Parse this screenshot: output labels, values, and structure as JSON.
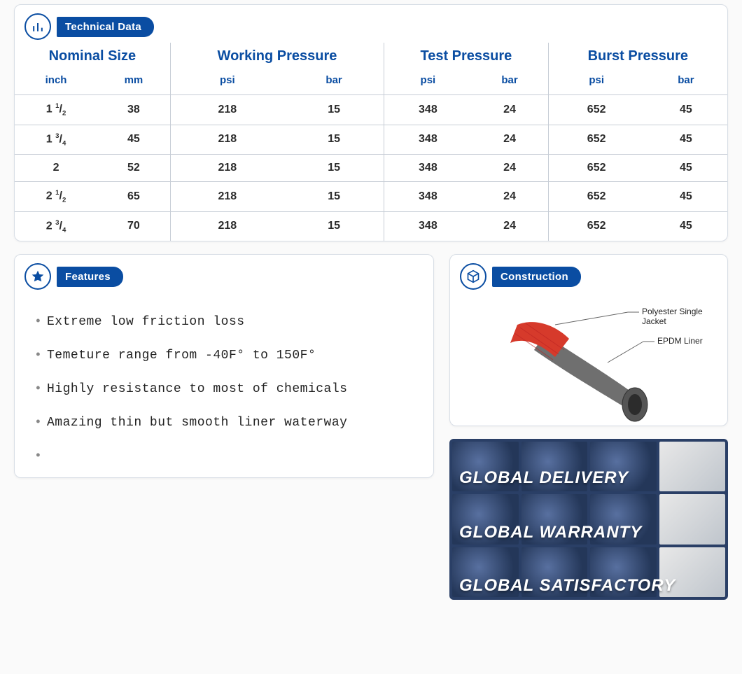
{
  "colors": {
    "brand_blue": "#0a4da2",
    "card_border": "#d8dee6",
    "row_border": "#c7cdd6",
    "header_sep": "#8f98a5",
    "feature_text": "#222222",
    "banner_bg": "#2a3f66"
  },
  "typography": {
    "group_header_fontsize": 20,
    "unit_header_fontsize": 15,
    "cell_fontsize": 16,
    "feature_fontsize": 18,
    "callout_fontsize": 12,
    "global_fontsize": 24,
    "badge_fontsize": 15
  },
  "tech": {
    "title": "Technical Data",
    "groups": [
      {
        "label": "Nominal Size",
        "units": [
          "inch",
          "mm"
        ]
      },
      {
        "label": "Working Pressure",
        "units": [
          "psi",
          "bar"
        ]
      },
      {
        "label": "Test Pressure",
        "units": [
          "psi",
          "bar"
        ]
      },
      {
        "label": "Burst Pressure",
        "units": [
          "psi",
          "bar"
        ]
      }
    ],
    "rows": [
      {
        "inch_whole": "1",
        "inch_num": "1",
        "inch_den": "2",
        "mm": "38",
        "wp_psi": "218",
        "wp_bar": "15",
        "tp_psi": "348",
        "tp_bar": "24",
        "bp_psi": "652",
        "bp_bar": "45"
      },
      {
        "inch_whole": "1",
        "inch_num": "3",
        "inch_den": "4",
        "mm": "45",
        "wp_psi": "218",
        "wp_bar": "15",
        "tp_psi": "348",
        "tp_bar": "24",
        "bp_psi": "652",
        "bp_bar": "45"
      },
      {
        "inch_whole": "2",
        "inch_num": "",
        "inch_den": "",
        "mm": "52",
        "wp_psi": "218",
        "wp_bar": "15",
        "tp_psi": "348",
        "tp_bar": "24",
        "bp_psi": "652",
        "bp_bar": "45"
      },
      {
        "inch_whole": "2",
        "inch_num": "1",
        "inch_den": "2",
        "mm": "65",
        "wp_psi": "218",
        "wp_bar": "15",
        "tp_psi": "348",
        "tp_bar": "24",
        "bp_psi": "652",
        "bp_bar": "45"
      },
      {
        "inch_whole": "2",
        "inch_num": "3",
        "inch_den": "4",
        "mm": "70",
        "wp_psi": "218",
        "wp_bar": "15",
        "tp_psi": "348",
        "tp_bar": "24",
        "bp_psi": "652",
        "bp_bar": "45"
      }
    ]
  },
  "features": {
    "title": "Features",
    "items": [
      "Extreme low friction loss",
      "Temeture range from -40F° to 150F°",
      "Highly resistance to most of chemicals",
      "Amazing thin but smooth liner waterway",
      ""
    ]
  },
  "construction": {
    "title": "Construction",
    "callouts": [
      {
        "label": "Polyester Single Jacket"
      },
      {
        "label": "EPDM Liner"
      }
    ],
    "hose": {
      "jacket_color": "#d63a2b",
      "liner_color": "#6f6f6f"
    }
  },
  "global_banner": {
    "lines": [
      "GLOBAL DELIVERY",
      "GLOBAL WARRANTY",
      "GLOBAL SATISFACTORY"
    ]
  }
}
